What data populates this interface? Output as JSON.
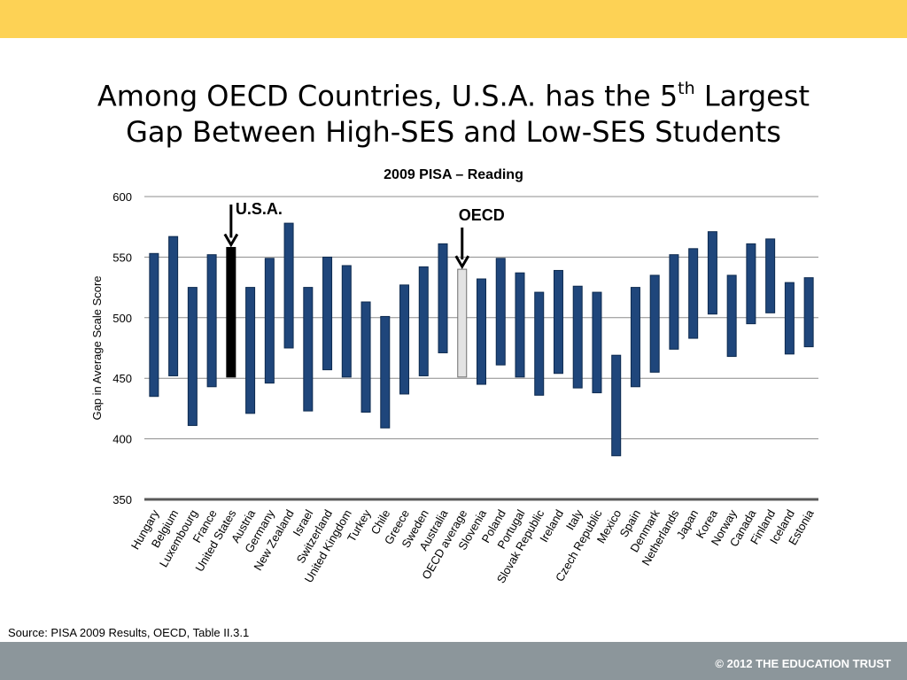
{
  "slide": {
    "title_line1_pre": "Among OECD Countries, U.S.A. has the 5",
    "title_sup": "th",
    "title_line1_post": " Largest",
    "title_line2": "Gap Between High-SES and Low-SES Students",
    "source": "Source: PISA 2009 Results, OECD, Table II.3.1",
    "copyright": "© 2012 THE EDUCATION TRUST",
    "colors": {
      "top_band": "#fdd255",
      "bottom_band": "#8c969b",
      "bar": "#1f467b",
      "usa_bar": "#000000",
      "oecd_bar": "#e3e3e3"
    }
  },
  "chart_data": {
    "type": "bar",
    "title": "2009 PISA – Reading",
    "ylabel": "Gap in Average Scale Score",
    "xlabel": "",
    "ylim": [
      350,
      600
    ],
    "yticks": [
      350,
      400,
      450,
      500,
      550,
      600
    ],
    "grid": true,
    "categories": [
      "Hungary",
      "Belgium",
      "Luxembourg",
      "France",
      "United States",
      "Austria",
      "Germany",
      "New Zealand",
      "Israel",
      "Switzerland",
      "United Kingdom",
      "Turkey",
      "Chile",
      "Greece",
      "Sweden",
      "Australia",
      "OECD average",
      "Slovenia",
      "Poland",
      "Portugal",
      "Slovak Republic",
      "Ireland",
      "Italy",
      "Czech Republic",
      "Mexico",
      "Spain",
      "Denmark",
      "Netherlands",
      "Japan",
      "Korea",
      "Norway",
      "Canada",
      "Finland",
      "Iceland",
      "Estonia"
    ],
    "series": [
      {
        "values": [
          [
            435,
            553
          ],
          [
            452,
            567
          ],
          [
            411,
            525
          ],
          [
            443,
            552
          ],
          [
            451,
            558
          ],
          [
            421,
            525
          ],
          [
            446,
            549
          ],
          [
            475,
            578
          ],
          [
            423,
            525
          ],
          [
            457,
            550
          ],
          [
            451,
            543
          ],
          [
            422,
            513
          ],
          [
            409,
            501
          ],
          [
            437,
            527
          ],
          [
            452,
            542
          ],
          [
            471,
            561
          ],
          [
            451,
            540
          ],
          [
            445,
            532
          ],
          [
            461,
            549
          ],
          [
            451,
            537
          ],
          [
            436,
            521
          ],
          [
            454,
            539
          ],
          [
            442,
            526
          ],
          [
            438,
            521
          ],
          [
            386,
            469
          ],
          [
            443,
            525
          ],
          [
            455,
            535
          ],
          [
            474,
            552
          ],
          [
            483,
            557
          ],
          [
            503,
            571
          ],
          [
            468,
            535
          ],
          [
            495,
            561
          ],
          [
            504,
            565
          ],
          [
            470,
            529
          ],
          [
            476,
            533
          ]
        ]
      }
    ],
    "annotations": [
      {
        "text": "U.S.A.",
        "target": "United States"
      },
      {
        "text": "OECD",
        "target": "OECD average"
      }
    ]
  }
}
